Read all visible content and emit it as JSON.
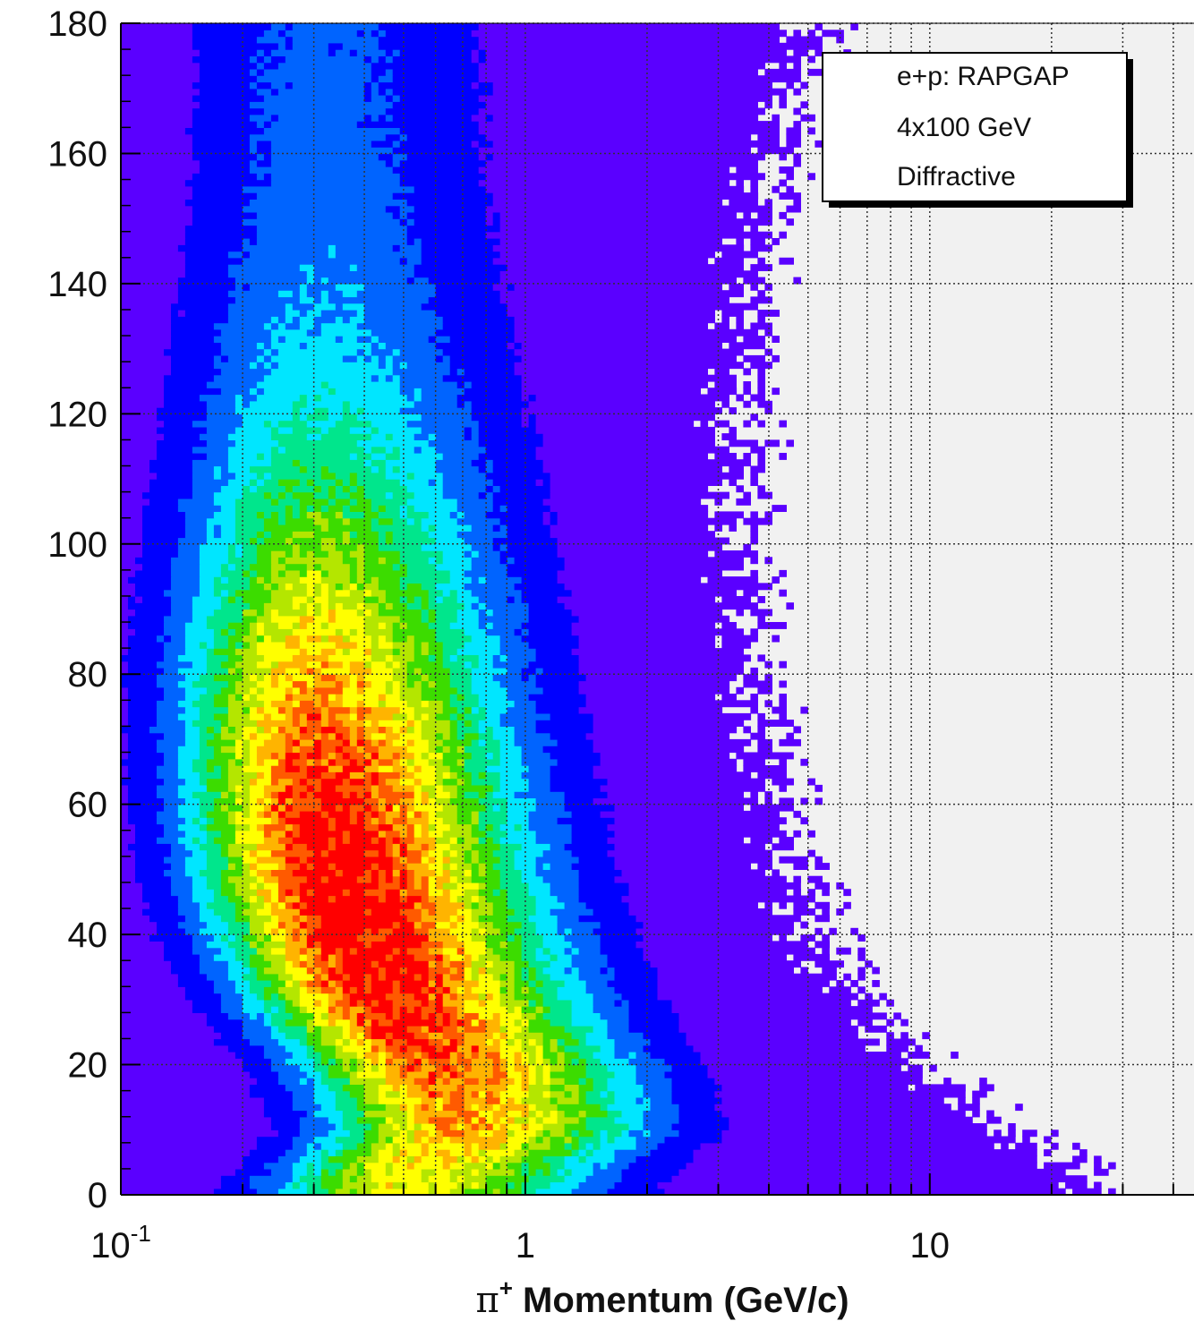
{
  "chart_data": {
    "type": "heatmap",
    "title": "",
    "xlabel_symbol": "π",
    "xlabel_sup": "+",
    "xlabel_rest": " Momentum (GeV/c)",
    "ylabel": "",
    "x_scale": "log",
    "xlim": [
      0.1,
      45
    ],
    "ylim": [
      0,
      180
    ],
    "x_ticks": [
      {
        "value": 0.1,
        "base": "10",
        "exp": "-1"
      },
      {
        "value": 1,
        "base": "1",
        "exp": ""
      },
      {
        "value": 10,
        "base": "10",
        "exp": ""
      }
    ],
    "y_ticks": [
      "0",
      "20",
      "40",
      "60",
      "80",
      "100",
      "120",
      "140",
      "160",
      "180"
    ],
    "grid": true,
    "legend": {
      "placement": "top-right",
      "entries": [
        "e+p: RAPGAP",
        "4x100 GeV",
        "Diffractive"
      ]
    },
    "colormap": [
      "#5a00ff",
      "#0000ff",
      "#0064ff",
      "#00e6ff",
      "#00e68c",
      "#3cdc00",
      "#b4e600",
      "#ffff00",
      "#ffb400",
      "#ff5a00",
      "#ff0000"
    ],
    "density_ridge": [
      {
        "y": 2,
        "p_peak": 0.5,
        "p_max": 20
      },
      {
        "y": 10,
        "p_peak": 0.7,
        "p_max": 12
      },
      {
        "y": 20,
        "p_peak": 0.6,
        "p_max": 7
      },
      {
        "y": 30,
        "p_peak": 0.45,
        "p_max": 5
      },
      {
        "y": 40,
        "p_peak": 0.38,
        "p_max": 4
      },
      {
        "y": 50,
        "p_peak": 0.34,
        "p_max": 3.5
      },
      {
        "y": 60,
        "p_peak": 0.32,
        "p_max": 3.2
      },
      {
        "y": 80,
        "p_peak": 0.3,
        "p_max": 2.8
      },
      {
        "y": 100,
        "p_peak": 0.3,
        "p_max": 2.6
      },
      {
        "y": 120,
        "p_peak": 0.3,
        "p_max": 2.6
      },
      {
        "y": 140,
        "p_peak": 0.3,
        "p_max": 2.8
      },
      {
        "y": 160,
        "p_peak": 0.3,
        "p_max": 3.2
      },
      {
        "y": 175,
        "p_peak": 0.3,
        "p_max": 3.8
      }
    ]
  }
}
